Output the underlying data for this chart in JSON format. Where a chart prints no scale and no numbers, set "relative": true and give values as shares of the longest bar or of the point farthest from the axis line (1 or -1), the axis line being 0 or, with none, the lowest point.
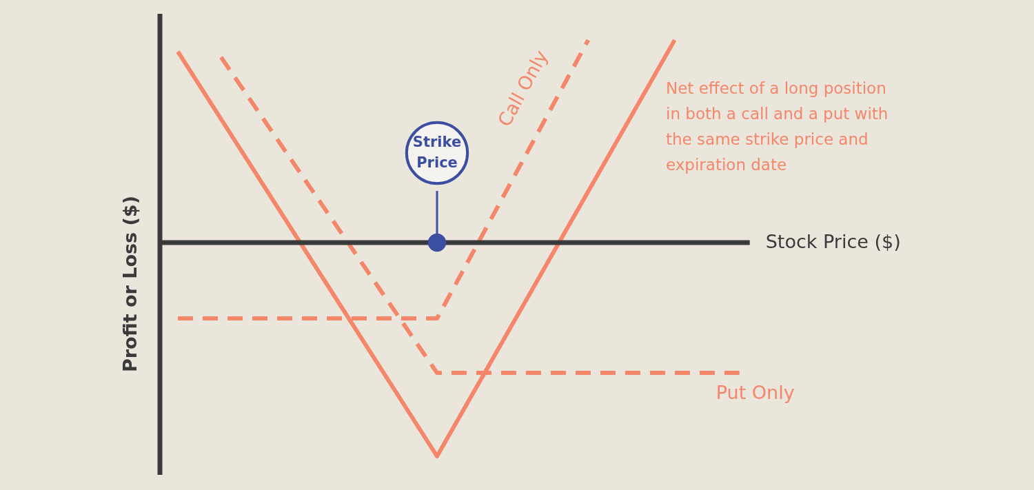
{
  "chart_data": {
    "type": "line",
    "relative": true,
    "xlabel": "Stock Price ($)",
    "ylabel": "Profit or Loss ($)",
    "marker": "none",
    "categories": [
      null,
      null,
      null,
      null,
      null,
      null,
      null,
      null,
      null,
      null,
      null,
      null,
      null,
      null,
      null,
      null,
      null,
      null,
      null,
      null,
      null,
      null,
      null,
      null,
      null,
      null,
      null
    ],
    "series": [
      {
        "values": [
          0.894,
          null,
          null,
          null,
          null,
          null,
          null,
          null,
          null,
          null,
          null,
          null,
          -1,
          null,
          null,
          null,
          null,
          null,
          null,
          null,
          null,
          null,
          null,
          0.948,
          null,
          null,
          null
        ],
        "color": "#f4866a",
        "line_style": "solid"
      },
      {
        "name": "Call Only",
        "values": [
          -0.355,
          null,
          null,
          null,
          null,
          null,
          null,
          null,
          null,
          null,
          null,
          null,
          -0.355,
          null,
          null,
          null,
          null,
          null,
          null,
          0.948,
          null,
          null,
          null,
          null,
          null,
          null,
          null
        ],
        "color": "#f4866a",
        "line_style": "dashed"
      },
      {
        "name": "Put Only",
        "values": [
          null,
          null,
          0.868,
          null,
          null,
          null,
          null,
          null,
          null,
          null,
          null,
          null,
          -0.61,
          null,
          null,
          null,
          null,
          null,
          null,
          null,
          null,
          null,
          null,
          null,
          null,
          null,
          -0.61
        ],
        "color": "#f4866a",
        "line_style": "dashed"
      }
    ],
    "annotations": [
      "Strike Price",
      "Net effect of a long position in both a call and a put with the same strike price and expiration date"
    ]
  }
}
